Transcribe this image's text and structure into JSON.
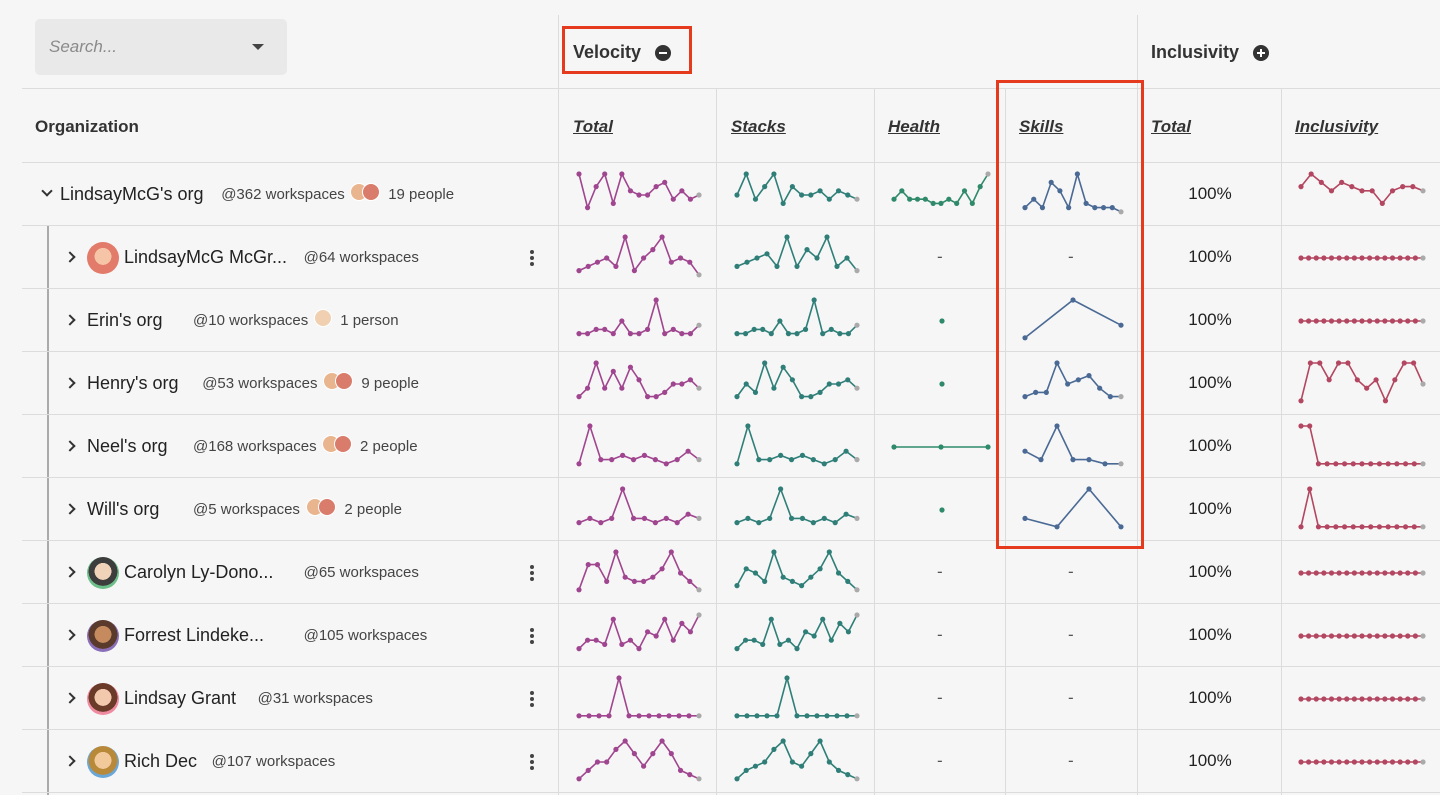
{
  "search": {
    "placeholder": "Search..."
  },
  "groups": [
    {
      "title": "Velocity",
      "toggle": "minus-circle-icon"
    },
    {
      "title": "Inclusivity",
      "toggle": "plus-circle-icon"
    }
  ],
  "columns": {
    "organization": "Organization",
    "velocity": [
      "Total",
      "Stacks",
      "Health",
      "Skills"
    ],
    "inclusivity": [
      "Total",
      "Inclusivity"
    ]
  },
  "colors": {
    "total": "#a0458f",
    "stacks": "#2f7f78",
    "health": "#2f8a6a",
    "skills": "#4a6a95",
    "inclusivity": "#b34660",
    "highlight": "#e63a1f"
  },
  "rows": [
    {
      "name": "LindsayMcG's org",
      "workspaces": "@362 workspaces",
      "people": "19 people",
      "expanded": true,
      "level": 0,
      "menu": false,
      "avatar": "group",
      "total": [
        10,
        2,
        7,
        10,
        3,
        10,
        6,
        5,
        5,
        7,
        8,
        4,
        6,
        4,
        5
      ],
      "stacks": [
        5,
        10,
        4,
        7,
        10,
        3,
        7,
        5,
        5,
        6,
        4,
        6,
        5,
        4
      ],
      "health": [
        4,
        6,
        4,
        4,
        4,
        3,
        3,
        4,
        3,
        6,
        3,
        7,
        10
      ],
      "skills": [
        2,
        4,
        2,
        8,
        6,
        2,
        10,
        3,
        2,
        2,
        2,
        1
      ],
      "inclusivity_pct": "100%",
      "inclusivity": [
        7,
        10,
        8,
        6,
        8,
        7,
        6,
        6,
        3,
        6,
        7,
        7,
        6
      ]
    },
    {
      "name": "LindsayMcG McGr...",
      "workspaces": "@64 workspaces",
      "people": "",
      "expanded": false,
      "level": 1,
      "menu": true,
      "avatar": "woman-red",
      "total": [
        2,
        3,
        4,
        5,
        3,
        10,
        2,
        5,
        7,
        10,
        4,
        5,
        4,
        1
      ],
      "stacks": [
        3,
        4,
        5,
        6,
        3,
        10,
        3,
        7,
        5,
        10,
        3,
        5,
        2
      ],
      "health": null,
      "skills": null,
      "inclusivity_pct": "100%",
      "inclusivity": [
        5,
        5,
        5,
        5,
        5,
        5,
        5,
        5,
        5,
        5,
        5,
        5,
        5,
        5,
        5,
        5,
        5
      ]
    },
    {
      "name": "Erin's org",
      "workspaces": "@10 workspaces",
      "people": "1 person",
      "expanded": false,
      "level": 1,
      "menu": false,
      "avatar": "single",
      "total": [
        2,
        2,
        3,
        3,
        2,
        5,
        2,
        2,
        3,
        10,
        2,
        3,
        2,
        2,
        4
      ],
      "stacks": [
        2,
        2,
        3,
        3,
        2,
        5,
        2,
        2,
        3,
        10,
        2,
        3,
        2,
        2,
        4
      ],
      "health": [
        5
      ],
      "skills": [
        1,
        10,
        4
      ],
      "inclusivity_pct": "100%",
      "inclusivity": [
        5,
        5,
        5,
        5,
        5,
        5,
        5,
        5,
        5,
        5,
        5,
        5,
        5,
        5,
        5,
        5,
        5
      ]
    },
    {
      "name": "Henry's org",
      "workspaces": "@53 workspaces",
      "people": "9 people",
      "expanded": false,
      "level": 1,
      "menu": false,
      "avatar": "group",
      "total": [
        2,
        4,
        10,
        4,
        8,
        4,
        9,
        6,
        2,
        2,
        3,
        5,
        5,
        6,
        4
      ],
      "stacks": [
        2,
        5,
        3,
        10,
        4,
        9,
        6,
        2,
        2,
        3,
        5,
        5,
        6,
        4
      ],
      "health": [
        5
      ],
      "skills": [
        2,
        3,
        3,
        10,
        5,
        6,
        7,
        4,
        2,
        2
      ],
      "inclusivity_pct": "100%",
      "inclusivity": [
        1,
        10,
        10,
        6,
        10,
        10,
        6,
        4,
        6,
        1,
        6,
        10,
        10,
        5
      ]
    },
    {
      "name": "Neel's org",
      "workspaces": "@168 workspaces",
      "people": "2 people",
      "expanded": false,
      "level": 1,
      "menu": false,
      "avatar": "group",
      "total": [
        1,
        10,
        2,
        2,
        3,
        2,
        3,
        2,
        1,
        2,
        4,
        2
      ],
      "stacks": [
        1,
        10,
        2,
        2,
        3,
        2,
        3,
        2,
        1,
        2,
        4,
        2
      ],
      "health": [
        5,
        5,
        5
      ],
      "skills": [
        4,
        2,
        10,
        2,
        2,
        1,
        1
      ],
      "inclusivity_pct": "100%",
      "inclusivity": [
        10,
        10,
        1,
        1,
        1,
        1,
        1,
        1,
        1,
        1,
        1,
        1,
        1,
        1,
        1
      ]
    },
    {
      "name": "Will's org",
      "workspaces": "@5 workspaces",
      "people": "2 people",
      "expanded": false,
      "level": 1,
      "menu": false,
      "avatar": "group",
      "total": [
        2,
        3,
        2,
        3,
        10,
        3,
        3,
        2,
        3,
        2,
        4,
        3
      ],
      "stacks": [
        2,
        3,
        2,
        3,
        10,
        3,
        3,
        2,
        3,
        2,
        4,
        3
      ],
      "health": [
        5
      ],
      "skills": [
        3,
        1,
        10,
        1
      ],
      "inclusivity_pct": "100%",
      "inclusivity": [
        1,
        10,
        1,
        1,
        1,
        1,
        1,
        1,
        1,
        1,
        1,
        1,
        1,
        1,
        1
      ]
    },
    {
      "name": "Carolyn Ly-Dono...",
      "workspaces": "@65 workspaces",
      "people": "",
      "expanded": false,
      "level": 1,
      "menu": true,
      "avatar": "woman-green",
      "total": [
        1,
        7,
        7,
        3,
        10,
        4,
        3,
        3,
        4,
        6,
        10,
        5,
        3,
        1
      ],
      "stacks": [
        2,
        6,
        5,
        3,
        10,
        4,
        3,
        2,
        4,
        6,
        10,
        5,
        3,
        1
      ],
      "health": null,
      "skills": null,
      "inclusivity_pct": "100%",
      "inclusivity": [
        5,
        5,
        5,
        5,
        5,
        5,
        5,
        5,
        5,
        5,
        5,
        5,
        5,
        5,
        5,
        5,
        5
      ]
    },
    {
      "name": "Forrest Lindeke...",
      "workspaces": "@105 workspaces",
      "people": "",
      "expanded": false,
      "level": 1,
      "menu": true,
      "avatar": "man-purple",
      "total": [
        2,
        4,
        4,
        3,
        9,
        3,
        4,
        2,
        6,
        5,
        9,
        4,
        8,
        6,
        10
      ],
      "stacks": [
        2,
        4,
        4,
        3,
        9,
        3,
        4,
        2,
        6,
        5,
        9,
        4,
        8,
        6,
        10
      ],
      "health": null,
      "skills": null,
      "inclusivity_pct": "100%",
      "inclusivity": [
        5,
        5,
        5,
        5,
        5,
        5,
        5,
        5,
        5,
        5,
        5,
        5,
        5,
        5,
        5,
        5,
        5
      ]
    },
    {
      "name": "Lindsay Grant",
      "workspaces": "@31 workspaces",
      "people": "",
      "expanded": false,
      "level": 1,
      "menu": true,
      "avatar": "woman-pink",
      "total": [
        1,
        1,
        1,
        1,
        10,
        1,
        1,
        1,
        1,
        1,
        1,
        1,
        1
      ],
      "stacks": [
        1,
        1,
        1,
        1,
        1,
        10,
        1,
        1,
        1,
        1,
        1,
        1,
        1
      ],
      "health": null,
      "skills": null,
      "inclusivity_pct": "100%",
      "inclusivity": [
        5,
        5,
        5,
        5,
        5,
        5,
        5,
        5,
        5,
        5,
        5,
        5,
        5,
        5,
        5,
        5,
        5
      ]
    },
    {
      "name": "Rich Dec",
      "workspaces": "@107 workspaces",
      "people": "",
      "expanded": false,
      "level": 1,
      "menu": true,
      "avatar": "man-yellow",
      "total": [
        1,
        3,
        5,
        5,
        8,
        10,
        7,
        4,
        7,
        10,
        7,
        3,
        2,
        1
      ],
      "stacks": [
        1,
        3,
        4,
        5,
        8,
        10,
        5,
        4,
        7,
        10,
        5,
        3,
        2,
        1
      ],
      "health": null,
      "skills": null,
      "inclusivity_pct": "100%",
      "inclusivity": [
        5,
        5,
        5,
        5,
        5,
        5,
        5,
        5,
        5,
        5,
        5,
        5,
        5,
        5,
        5,
        5,
        5
      ]
    }
  ]
}
